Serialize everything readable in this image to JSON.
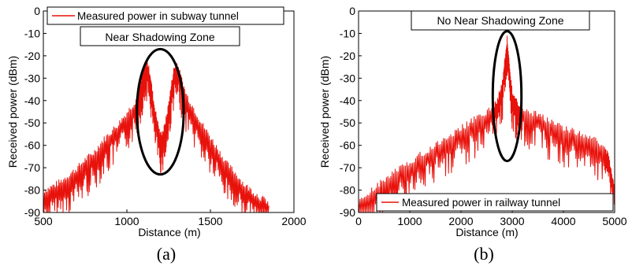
{
  "colors": {
    "series": "#e8120c",
    "axis": "#000000",
    "ellipse": "#000000",
    "background": "#ffffff"
  },
  "chart_data": [
    {
      "type": "line",
      "caption": "(a)",
      "xlabel": "Distance (m)",
      "ylabel": "Received power (dBm)",
      "xlim": [
        500,
        2000
      ],
      "ylim": [
        -90,
        0
      ],
      "xticks": [
        500,
        1000,
        1500,
        2000
      ],
      "yticks": [
        0,
        -10,
        -20,
        -30,
        -40,
        -50,
        -60,
        -70,
        -80,
        -90
      ],
      "grid": false,
      "legend_position": "top-left",
      "annotation": "Near Shadowing Zone",
      "highlight": {
        "shape": "ellipse",
        "center": [
          1200,
          -45
        ],
        "half_width": 140,
        "half_height": 28
      },
      "series": [
        {
          "name": "Measured power in subway tunnel",
          "color": "#e8120c",
          "x": [
            500,
            550,
            600,
            650,
            700,
            750,
            800,
            850,
            900,
            950,
            1000,
            1050,
            1080,
            1100,
            1120,
            1140,
            1160,
            1180,
            1200,
            1220,
            1240,
            1260,
            1280,
            1300,
            1320,
            1350,
            1400,
            1450,
            1500,
            1550,
            1600,
            1650,
            1700,
            1750,
            1800,
            1850
          ],
          "y": [
            -82,
            -80,
            -78,
            -75,
            -72,
            -68,
            -65,
            -60,
            -56,
            -52,
            -47,
            -42,
            -35,
            -28,
            -24,
            -30,
            -42,
            -50,
            -57,
            -55,
            -48,
            -38,
            -28,
            -25,
            -30,
            -38,
            -45,
            -52,
            -58,
            -64,
            -70,
            -74,
            -79,
            -82,
            -85,
            -87
          ]
        }
      ]
    },
    {
      "type": "line",
      "caption": "(b)",
      "xlabel": "Distance (m)",
      "ylabel": "Received power (dBm)",
      "xlim": [
        0,
        5000
      ],
      "ylim": [
        -90,
        0
      ],
      "xticks": [
        0,
        1000,
        2000,
        3000,
        4000,
        5000
      ],
      "yticks": [
        0,
        -10,
        -20,
        -30,
        -40,
        -50,
        -60,
        -70,
        -80,
        -90
      ],
      "grid": false,
      "legend_position": "bottom-right",
      "annotation": "No Near Shadowing Zone",
      "highlight": {
        "shape": "ellipse",
        "center": [
          2900,
          -38
        ],
        "half_width": 280,
        "half_height": 29
      },
      "series": [
        {
          "name": "Measured power in railway tunnel",
          "color": "#e8120c",
          "x": [
            0,
            200,
            400,
            600,
            800,
            1000,
            1200,
            1400,
            1600,
            1800,
            2000,
            2200,
            2400,
            2600,
            2700,
            2800,
            2850,
            2900,
            2950,
            3000,
            3100,
            3200,
            3400,
            3600,
            3800,
            4000,
            4200,
            4400,
            4600,
            4800,
            4900,
            5000
          ],
          "y": [
            -87,
            -83,
            -79,
            -75,
            -72,
            -69,
            -66,
            -63,
            -60,
            -57,
            -54,
            -51,
            -48,
            -45,
            -42,
            -35,
            -25,
            -14,
            -27,
            -38,
            -43,
            -45,
            -47,
            -49,
            -52,
            -54,
            -55,
            -57,
            -59,
            -62,
            -68,
            -80
          ]
        }
      ]
    }
  ]
}
